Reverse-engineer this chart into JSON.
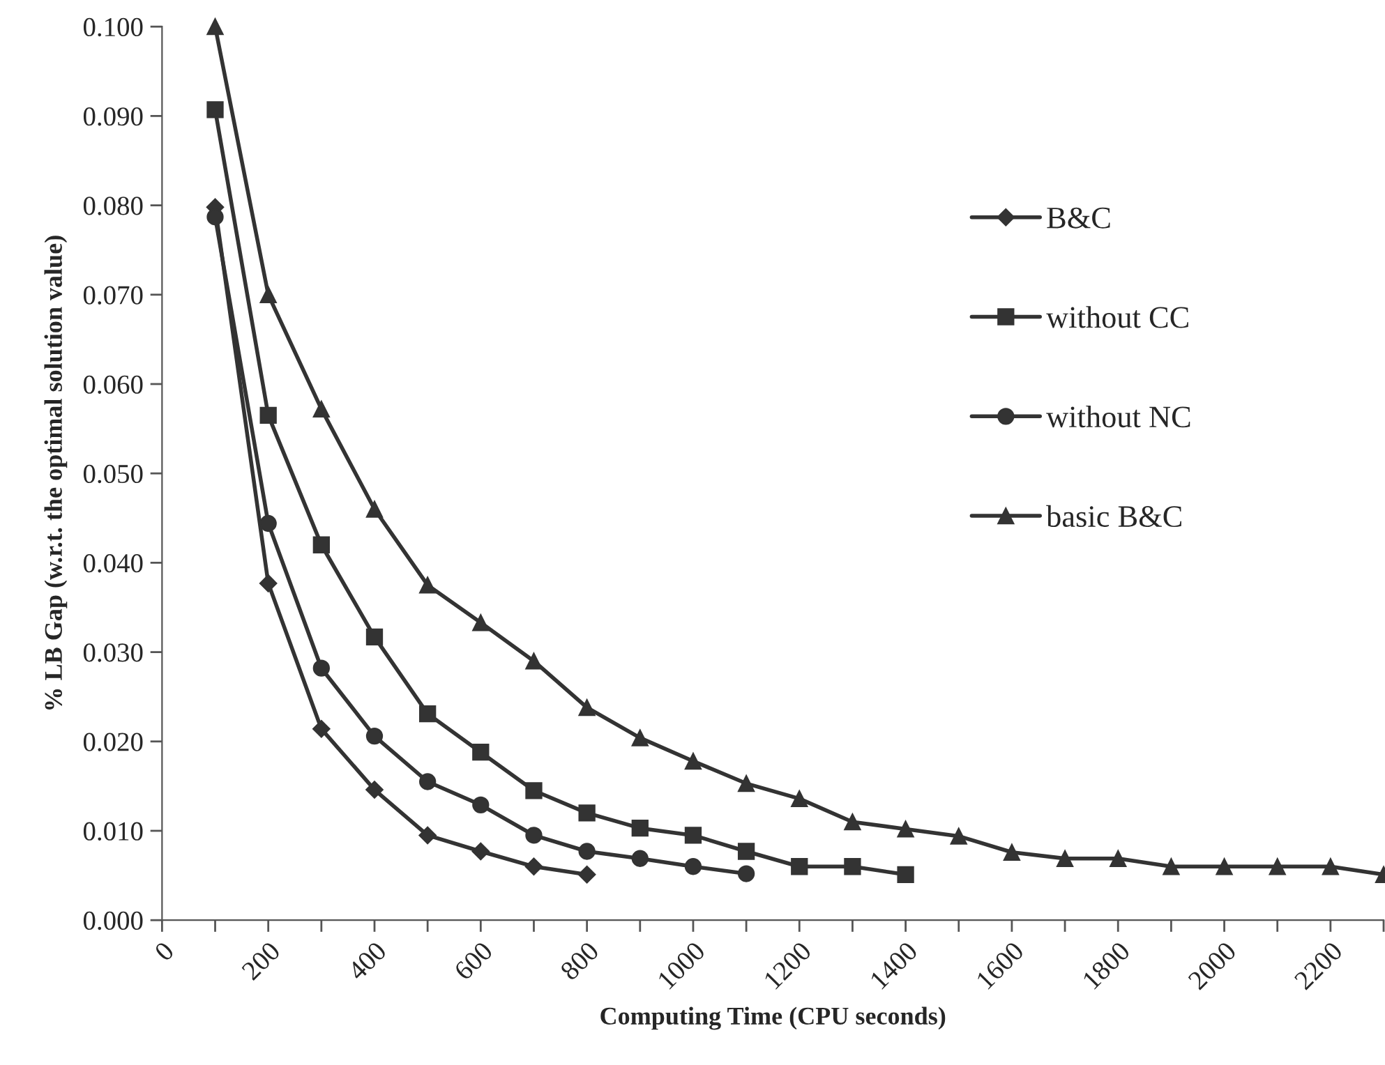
{
  "chart_data": {
    "type": "line",
    "xlabel": "Computing Time (CPU seconds)",
    "ylabel": "% LB Gap (w.r.t. the optimal solution value)",
    "xlim": [
      0,
      2300
    ],
    "xticks": [
      0,
      {
        "value": 100,
        "label": null
      },
      200,
      {
        "value": 300,
        "label": null
      },
      400,
      {
        "value": 500,
        "label": null
      },
      600,
      {
        "value": 700,
        "label": null
      },
      800,
      {
        "value": 900,
        "label": null
      },
      1000,
      {
        "value": 1100,
        "label": null
      },
      1200,
      {
        "value": 1300,
        "label": null
      },
      1400,
      {
        "value": 1500,
        "label": null
      },
      1600,
      {
        "value": 1700,
        "label": null
      },
      1800,
      {
        "value": 1900,
        "label": null
      },
      2000,
      {
        "value": 2100,
        "label": null
      },
      2200,
      {
        "value": 2300,
        "label": null
      }
    ],
    "ylim": [
      0,
      0.1
    ],
    "yticks": [
      {
        "value": 0,
        "label": "0.000"
      },
      {
        "value": 0.01,
        "label": "0.010"
      },
      {
        "value": 0.02,
        "label": "0.020"
      },
      {
        "value": 0.03,
        "label": "0.030"
      },
      {
        "value": 0.04,
        "label": "0.040"
      },
      {
        "value": 0.05,
        "label": "0.050"
      },
      {
        "value": 0.06,
        "label": "0.060"
      },
      {
        "value": 0.07,
        "label": "0.070"
      },
      {
        "value": 0.08,
        "label": "0.080"
      },
      {
        "value": 0.09,
        "label": "0.090"
      },
      {
        "value": 0.1,
        "label": "0.100"
      }
    ],
    "grid": false,
    "legend": "right",
    "line_style": "solid",
    "series": [
      {
        "name": "B&C",
        "color": "#333333",
        "marker": "diamond",
        "x": [
          100,
          200,
          300,
          400,
          500,
          600,
          700,
          800
        ],
        "values": [
          0.0798,
          0.0377,
          0.0214,
          0.0146,
          0.0095,
          0.0077,
          0.006,
          0.0051
        ]
      },
      {
        "name": "without CC",
        "color": "#333333",
        "marker": "square",
        "x": [
          100,
          200,
          300,
          400,
          500,
          600,
          700,
          800,
          900,
          1000,
          1100,
          1200,
          1300,
          1400
        ],
        "values": [
          0.0907,
          0.0565,
          0.042,
          0.0317,
          0.0231,
          0.0188,
          0.0145,
          0.012,
          0.0103,
          0.0095,
          0.0077,
          0.006,
          0.006,
          0.0051
        ]
      },
      {
        "name": "without NC",
        "color": "#333333",
        "marker": "circle",
        "x": [
          100,
          200,
          300,
          400,
          500,
          600,
          700,
          800,
          900,
          1000,
          1100
        ],
        "values": [
          0.0787,
          0.0444,
          0.0282,
          0.0206,
          0.0155,
          0.0129,
          0.0095,
          0.0077,
          0.0069,
          0.006,
          0.0052
        ]
      },
      {
        "name": "basic B&C",
        "color": "#333333",
        "marker": "triangle",
        "x": [
          100,
          200,
          300,
          400,
          500,
          600,
          700,
          800,
          900,
          1000,
          1100,
          1200,
          1300,
          1400,
          1500,
          1600,
          1700,
          1800,
          1900,
          2000,
          2100,
          2200,
          2300
        ],
        "values": [
          0.1,
          0.07,
          0.0572,
          0.046,
          0.0375,
          0.0333,
          0.029,
          0.0238,
          0.0204,
          0.0178,
          0.0153,
          0.0136,
          0.011,
          0.0102,
          0.0094,
          0.0076,
          0.0069,
          0.0069,
          0.006,
          0.006,
          0.006,
          0.006,
          0.0051
        ]
      }
    ]
  }
}
